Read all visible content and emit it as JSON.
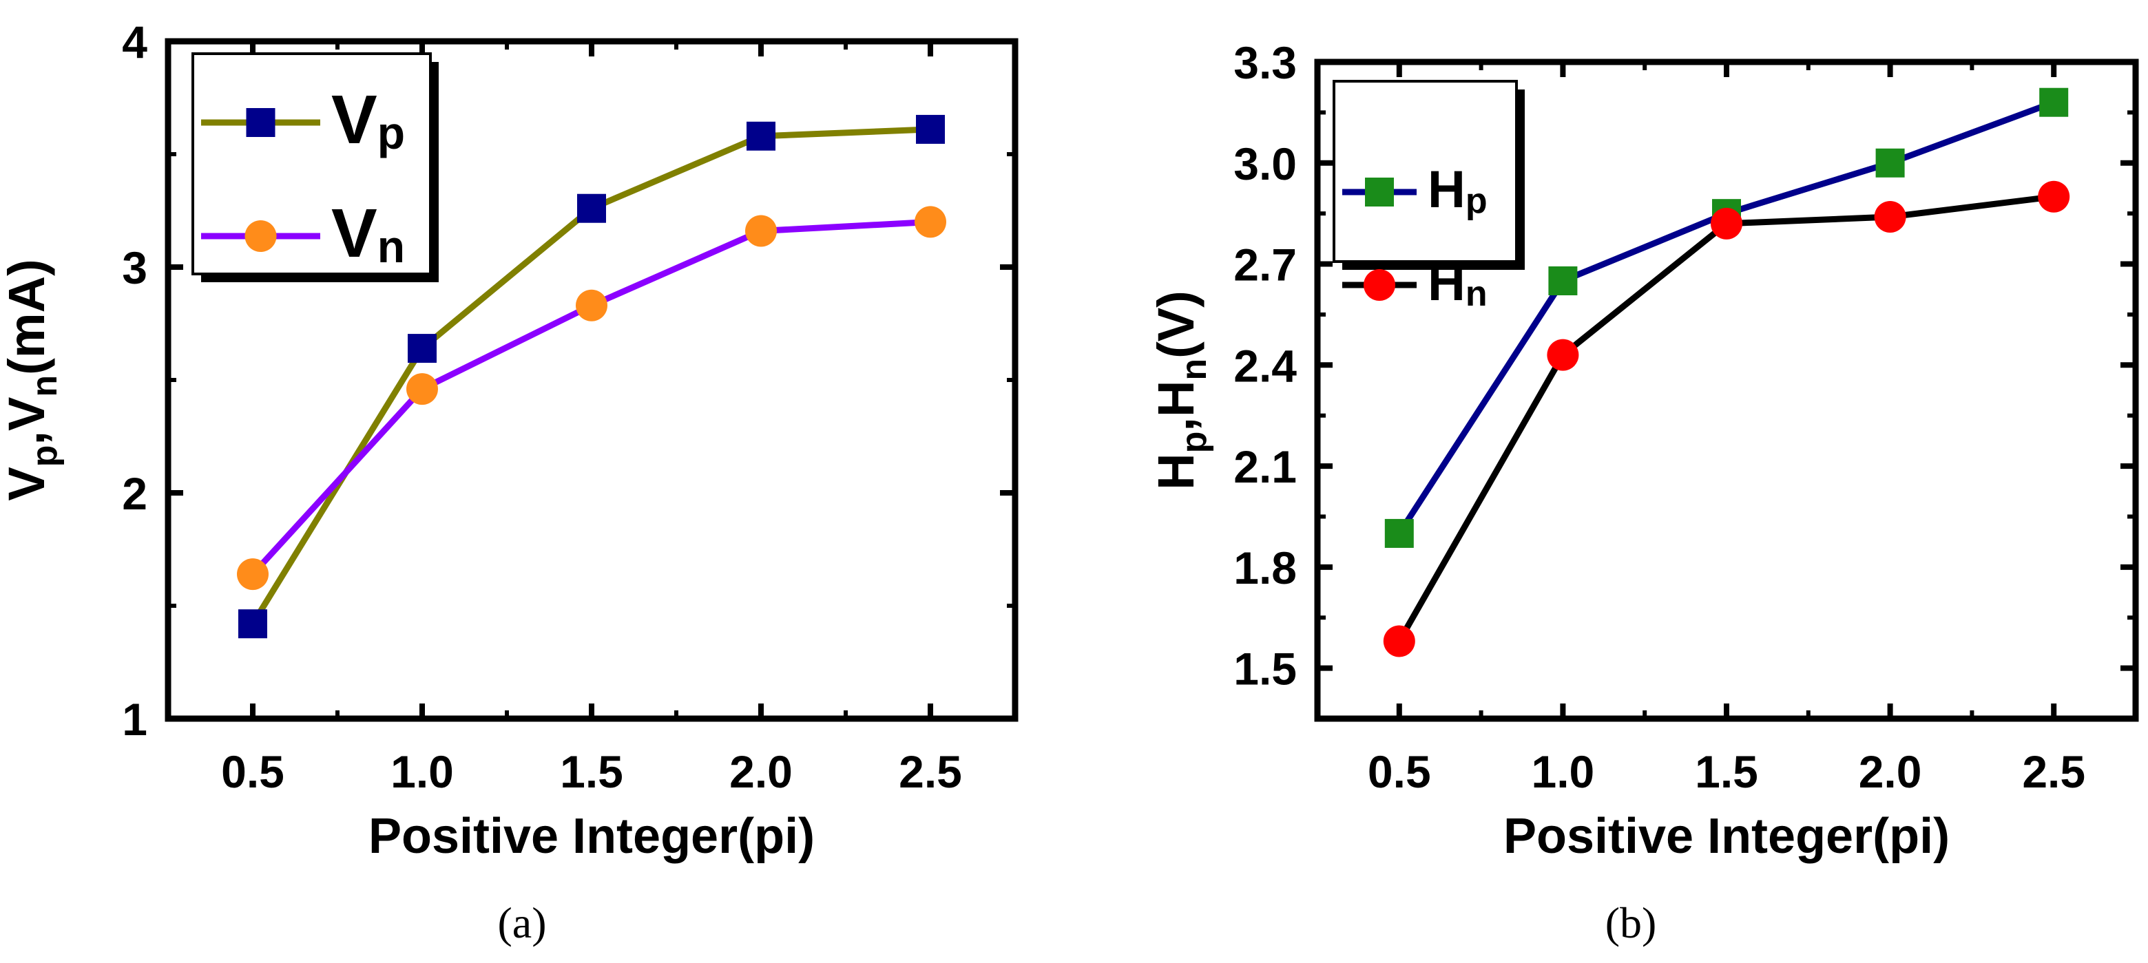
{
  "chart_data": [
    {
      "type": "line",
      "caption": "(a)",
      "xlabel": "Positive Integer(pi)",
      "ylabel": {
        "p1": "V",
        "s1": "p",
        "mid": ",V",
        "s2": "n",
        "tail": "(mA)"
      },
      "x": [
        0.5,
        1.0,
        1.5,
        2.0,
        2.5
      ],
      "xlim": [
        0.25,
        2.75
      ],
      "ylim": [
        1,
        4
      ],
      "xticks": [
        "0.5",
        "1.0",
        "1.5",
        "2.0",
        "2.5"
      ],
      "yticks": [
        "1",
        "2",
        "3",
        "4"
      ],
      "legend_position": "top-left",
      "series": [
        {
          "name": "Vp",
          "base": "V",
          "sub": "p",
          "color": "#808000",
          "marker_color": "#00008b",
          "marker": "square",
          "values": [
            1.42,
            2.64,
            3.26,
            3.58,
            3.61
          ]
        },
        {
          "name": "Vn",
          "base": "V",
          "sub": "n",
          "color": "#8b00ff",
          "marker_color": "#ff8c1a",
          "marker": "circle",
          "values": [
            1.64,
            2.46,
            2.83,
            3.16,
            3.2
          ]
        }
      ]
    },
    {
      "type": "line",
      "caption": "(b)",
      "xlabel": "Positive Integer(pi)",
      "ylabel": {
        "p1": "H",
        "s1": "p",
        "mid": ",H",
        "s2": "n",
        "tail": "(V)"
      },
      "x": [
        0.5,
        1.0,
        1.5,
        2.0,
        2.5
      ],
      "xlim": [
        0.25,
        2.75
      ],
      "ylim": [
        1.35,
        3.3
      ],
      "yticks_values": [
        1.5,
        1.8,
        2.1,
        2.4,
        2.7,
        3.0,
        3.3
      ],
      "xticks": [
        "0.5",
        "1.0",
        "1.5",
        "2.0",
        "2.5"
      ],
      "yticks": [
        "1.5",
        "1.8",
        "2.1",
        "2.4",
        "2.7",
        "3.0",
        "3.3"
      ],
      "legend_position": "top-left",
      "series": [
        {
          "name": "Hp",
          "base": "H",
          "sub": "p",
          "color": "#00008b",
          "marker_color": "#1a8c1a",
          "marker": "square",
          "values": [
            1.9,
            2.65,
            2.85,
            3.0,
            3.18
          ]
        },
        {
          "name": "Hn",
          "base": "H",
          "sub": "n",
          "color": "#000000",
          "marker_color": "#ff0000",
          "marker": "circle",
          "values": [
            1.58,
            2.43,
            2.82,
            2.84,
            2.9
          ]
        }
      ]
    }
  ]
}
